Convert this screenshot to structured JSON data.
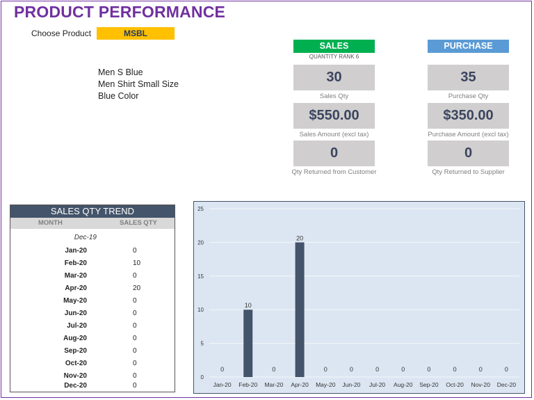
{
  "title": "PRODUCT PERFORMANCE",
  "chooser": {
    "label": "Choose Product",
    "value": "MSBL"
  },
  "description": [
    "Men S Blue",
    "Men Shirt Small Size",
    "Blue Color"
  ],
  "sales": {
    "header": "SALES",
    "rank_label": "QUANTITY RANK 6",
    "qty": "30",
    "qty_label": "Sales Qty",
    "amount": "$550.00",
    "amount_label": "Sales Amount (excl tax)",
    "returned": "0",
    "returned_label": "Qty Returned from Customer"
  },
  "purchase": {
    "header": "PURCHASE",
    "qty": "35",
    "qty_label": "Purchase Qty",
    "amount": "$350.00",
    "amount_label": "Purchase Amount (excl tax)",
    "returned": "0",
    "returned_label": "Qty Returned to Supplier"
  },
  "colors": {
    "title": "#7030a0",
    "sales": "#00b050",
    "purchase": "#5b9bd5",
    "selector": "#ffc000",
    "bar": "#44546a"
  },
  "trend": {
    "title": "SALES QTY TREND",
    "col_month": "MONTH",
    "col_qty": "SALES QTY",
    "start_month": "Dec-19",
    "rows": [
      {
        "month": "Jan-20",
        "qty": "0"
      },
      {
        "month": "Feb-20",
        "qty": "10"
      },
      {
        "month": "Mar-20",
        "qty": "0"
      },
      {
        "month": "Apr-20",
        "qty": "20"
      },
      {
        "month": "May-20",
        "qty": "0"
      },
      {
        "month": "Jun-20",
        "qty": "0"
      },
      {
        "month": "Jul-20",
        "qty": "0"
      },
      {
        "month": "Aug-20",
        "qty": "0"
      },
      {
        "month": "Sep-20",
        "qty": "0"
      },
      {
        "month": "Oct-20",
        "qty": "0"
      },
      {
        "month": "Nov-20",
        "qty": "0"
      },
      {
        "month": "Dec-20",
        "qty": "0"
      }
    ]
  },
  "chart_data": {
    "type": "bar",
    "categories": [
      "Jan-20",
      "Feb-20",
      "Mar-20",
      "Apr-20",
      "May-20",
      "Jun-20",
      "Jul-20",
      "Aug-20",
      "Sep-20",
      "Oct-20",
      "Nov-20",
      "Dec-20"
    ],
    "values": [
      0,
      10,
      0,
      20,
      0,
      0,
      0,
      0,
      0,
      0,
      0,
      0
    ],
    "ylim": [
      0,
      25
    ],
    "yticks": [
      0,
      5,
      10,
      15,
      20,
      25
    ],
    "grid": true,
    "data_labels": true,
    "title": "",
    "xlabel": "",
    "ylabel": ""
  }
}
